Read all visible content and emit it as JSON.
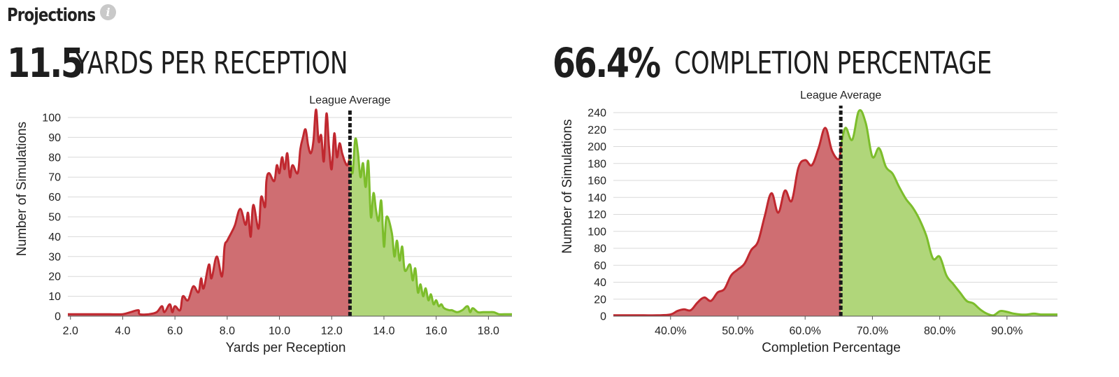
{
  "header": {
    "title": "Projections",
    "info_icon": "info-icon"
  },
  "colors": {
    "below": "#c0282f",
    "below_fill": "#cf6e72",
    "above": "#7cbd2b",
    "above_fill": "#b0d67a",
    "marker": "#1a1a1a",
    "grid": "#d9d9d9"
  },
  "panels": [
    {
      "stat_value": "11.5",
      "stat_label": "YARDS PER RECEPTION",
      "chart_data": {
        "type": "area",
        "title": "",
        "xlabel": "Yards per Reception",
        "ylabel": "Number of Simulations",
        "xlim": [
          1.9,
          18.9
        ],
        "ylim": [
          0,
          100
        ],
        "yticks": [
          0,
          10,
          20,
          30,
          40,
          50,
          60,
          70,
          80,
          90,
          100
        ],
        "xticks": [
          "2.0",
          "4.0",
          "6.0",
          "8.0",
          "10.0",
          "12.0",
          "14.0",
          "16.0",
          "18.0"
        ],
        "xtick_values": [
          2,
          4,
          6,
          8,
          10,
          12,
          14,
          16,
          18
        ],
        "marker_label": "League Average",
        "marker_x": 12.7,
        "grid": true,
        "x": [
          1.9,
          2.5,
          3.0,
          3.5,
          4.0,
          4.3,
          4.6,
          4.65,
          5.0,
          5.3,
          5.5,
          5.6,
          5.8,
          5.9,
          6.0,
          6.2,
          6.3,
          6.5,
          6.7,
          6.9,
          7.0,
          7.1,
          7.3,
          7.4,
          7.6,
          7.8,
          7.9,
          8.0,
          8.2,
          8.3,
          8.5,
          8.7,
          8.8,
          8.9,
          9.0,
          9.2,
          9.3,
          9.45,
          9.5,
          9.6,
          9.8,
          9.9,
          10.0,
          10.1,
          10.2,
          10.3,
          10.4,
          10.5,
          10.7,
          10.8,
          10.9,
          11.0,
          11.1,
          11.2,
          11.3,
          11.4,
          11.5,
          11.6,
          11.7,
          11.8,
          11.9,
          12.0,
          12.1,
          12.2,
          12.3,
          12.4,
          12.5,
          12.6,
          12.7,
          12.8,
          12.9,
          13.0,
          13.1,
          13.2,
          13.3,
          13.4,
          13.5,
          13.6,
          13.7,
          13.8,
          13.9,
          14.0,
          14.1,
          14.3,
          14.4,
          14.5,
          14.6,
          14.7,
          14.8,
          15.0,
          15.1,
          15.2,
          15.3,
          15.4,
          15.5,
          15.6,
          15.7,
          15.8,
          15.9,
          16.0,
          16.1,
          16.2,
          16.3,
          16.5,
          16.6,
          16.8,
          17.0,
          17.2,
          17.3,
          17.4,
          17.6,
          17.8,
          18.0,
          18.2,
          18.4,
          18.6,
          18.9
        ],
        "y": [
          1,
          1,
          1,
          1,
          1,
          2,
          3,
          1,
          1,
          2,
          5,
          2,
          6,
          2,
          5,
          3,
          10,
          8,
          15,
          12,
          19,
          14,
          26,
          19,
          30,
          20,
          35,
          38,
          43,
          46,
          54,
          46,
          52,
          40,
          56,
          44,
          60,
          55,
          68,
          72,
          68,
          76,
          72,
          80,
          74,
          82,
          70,
          76,
          72,
          84,
          90,
          94,
          86,
          82,
          88,
          104,
          88,
          91,
          78,
          102,
          85,
          74,
          92,
          80,
          87,
          82,
          78,
          76,
          80,
          72,
          89,
          83,
          70,
          77,
          65,
          78,
          50,
          62,
          53,
          48,
          58,
          35,
          50,
          42,
          30,
          38,
          28,
          35,
          23,
          26,
          18,
          24,
          12,
          16,
          10,
          14,
          8,
          11,
          6,
          8,
          5,
          6,
          4,
          3,
          3,
          2,
          3,
          5,
          2,
          4,
          2,
          2,
          2,
          2,
          1,
          1,
          1
        ]
      }
    },
    {
      "stat_value": "66.4%",
      "stat_label": "COMPLETION PERCENTAGE",
      "chart_data": {
        "type": "area",
        "title": "",
        "xlabel": "Completion Percentage",
        "ylabel": "Number of Simulations",
        "xlim": [
          31.5,
          97.5
        ],
        "ylim": [
          0,
          240
        ],
        "yticks": [
          0,
          20,
          40,
          60,
          80,
          100,
          120,
          140,
          160,
          180,
          200,
          220,
          240
        ],
        "xticks": [
          "40.0%",
          "50.0%",
          "60.0%",
          "70.0%",
          "80.0%",
          "90.0%"
        ],
        "xtick_values": [
          40,
          50,
          60,
          70,
          80,
          90
        ],
        "marker_label": "League Average",
        "marker_x": 65.3,
        "grid": true,
        "x": [
          31.5,
          34,
          36,
          38,
          40,
          41,
          42,
          43,
          44,
          45,
          46,
          47,
          48,
          49,
          50,
          51,
          52,
          53,
          54,
          55,
          56,
          57,
          58,
          59,
          60,
          61,
          62,
          63,
          64,
          65,
          65.3,
          66,
          67,
          68,
          69,
          70,
          71,
          72,
          73,
          74,
          75,
          76,
          77,
          78,
          79,
          80,
          81,
          82,
          83,
          84,
          85,
          86,
          87,
          88,
          89,
          90,
          91,
          92,
          93,
          94,
          95,
          96,
          97.5
        ],
        "y": [
          1,
          1,
          1,
          1,
          2,
          6,
          8,
          7,
          16,
          22,
          18,
          28,
          32,
          48,
          55,
          62,
          78,
          88,
          118,
          145,
          122,
          148,
          136,
          175,
          184,
          178,
          198,
          222,
          195,
          185,
          200,
          222,
          208,
          242,
          228,
          188,
          198,
          176,
          168,
          152,
          138,
          128,
          114,
          95,
          68,
          70,
          48,
          38,
          28,
          18,
          15,
          8,
          3,
          1,
          6,
          5,
          3,
          2,
          2,
          3,
          2,
          2,
          2
        ]
      }
    }
  ]
}
